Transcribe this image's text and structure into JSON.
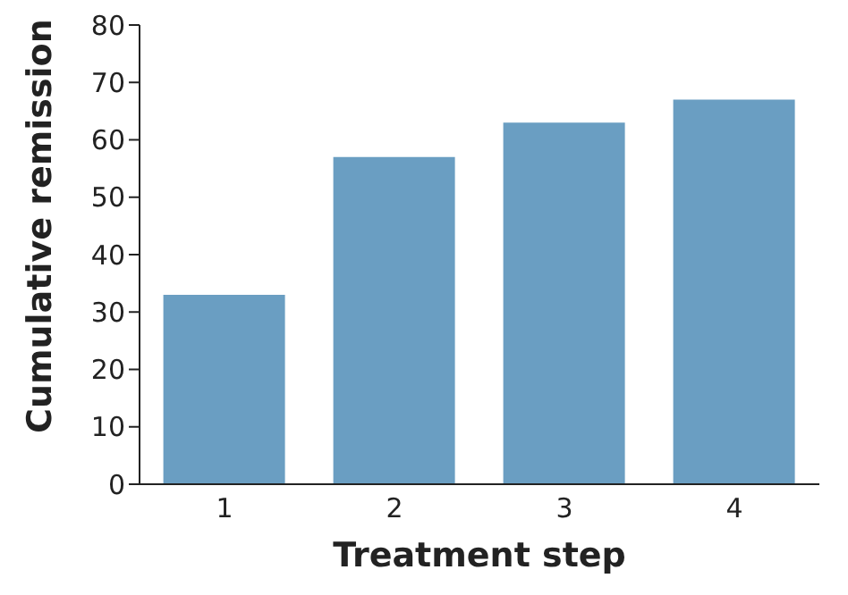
{
  "chart_data": {
    "type": "bar",
    "xlabel": "Treatment step",
    "ylabel": "Cumulative remission",
    "categories": [
      "1",
      "2",
      "3",
      "4"
    ],
    "values": [
      33,
      57,
      63,
      67
    ],
    "color": "#6a9ec2",
    "ylim": [
      0,
      80
    ],
    "yticks": [
      0,
      10,
      20,
      30,
      40,
      50,
      60,
      70,
      80
    ],
    "grid": false,
    "legend": false
  }
}
